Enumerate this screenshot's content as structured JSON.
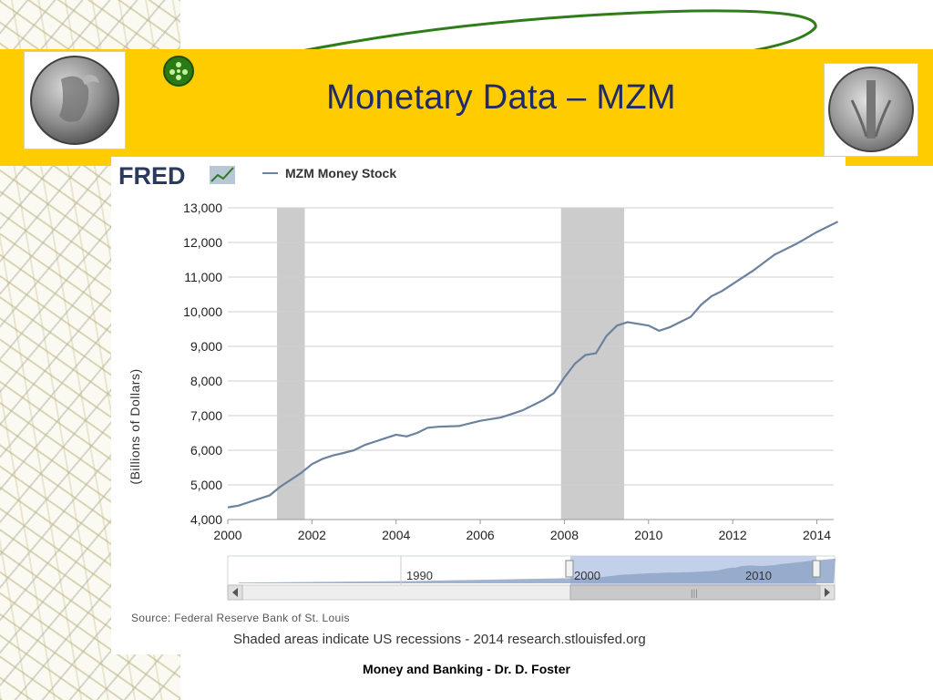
{
  "slide": {
    "title": "Monetary Data – MZM",
    "footer": "Money and Banking - Dr. D. Foster",
    "banner_color": "#ffcc00",
    "title_color": "#1f2a6b"
  },
  "fred": {
    "logo_text": "FRED",
    "logo_icon": "line-chart-icon"
  },
  "chart_data": {
    "type": "line",
    "series": [
      {
        "name": "MZM Money Stock",
        "color": "#6b829e",
        "x": [
          2000.0,
          2000.25,
          2000.5,
          2000.75,
          2001.0,
          2001.25,
          2001.5,
          2001.75,
          2002.0,
          2002.25,
          2002.5,
          2002.75,
          2003.0,
          2003.25,
          2003.5,
          2003.75,
          2004.0,
          2004.25,
          2004.5,
          2004.75,
          2005.0,
          2005.5,
          2006.0,
          2006.5,
          2007.0,
          2007.5,
          2007.75,
          2008.0,
          2008.25,
          2008.5,
          2008.75,
          2009.0,
          2009.25,
          2009.5,
          2009.75,
          2010.0,
          2010.25,
          2010.5,
          2010.75,
          2011.0,
          2011.25,
          2011.5,
          2011.75,
          2012.0,
          2012.5,
          2013.0,
          2013.5,
          2014.0,
          2014.25,
          2014.5
        ],
        "values": [
          4350,
          4400,
          4500,
          4600,
          4700,
          4950,
          5150,
          5350,
          5600,
          5750,
          5850,
          5920,
          6000,
          6150,
          6250,
          6350,
          6450,
          6400,
          6500,
          6650,
          6680,
          6700,
          6850,
          6950,
          7150,
          7450,
          7650,
          8100,
          8500,
          8750,
          8800,
          9300,
          9600,
          9700,
          9650,
          9600,
          9450,
          9550,
          9700,
          9850,
          10200,
          10450,
          10600,
          10800,
          11200,
          11650,
          11950,
          12300,
          12450,
          12600
        ]
      }
    ],
    "recessions": [
      [
        2001.17,
        2001.83
      ],
      [
        2007.92,
        2009.42
      ]
    ],
    "ylabel": "(Billions of Dollars)",
    "xlabel": "",
    "ylim": [
      4000,
      13000
    ],
    "xlim": [
      2000,
      2014.4
    ],
    "yticks": [
      "4,000",
      "5,000",
      "6,000",
      "7,000",
      "8,000",
      "9,000",
      "10,000",
      "11,000",
      "12,000",
      "13,000"
    ],
    "xticks": [
      "2000",
      "2002",
      "2004",
      "2006",
      "2008",
      "2010",
      "2012",
      "2014"
    ],
    "grid": true,
    "legend": "top-left",
    "navigator_labels": [
      "1990",
      "2000",
      "2010"
    ],
    "source": "Source: Federal Reserve Bank of St. Louis",
    "note": "Shaded areas indicate US recessions - 2014 research.stlouisfed.org"
  }
}
